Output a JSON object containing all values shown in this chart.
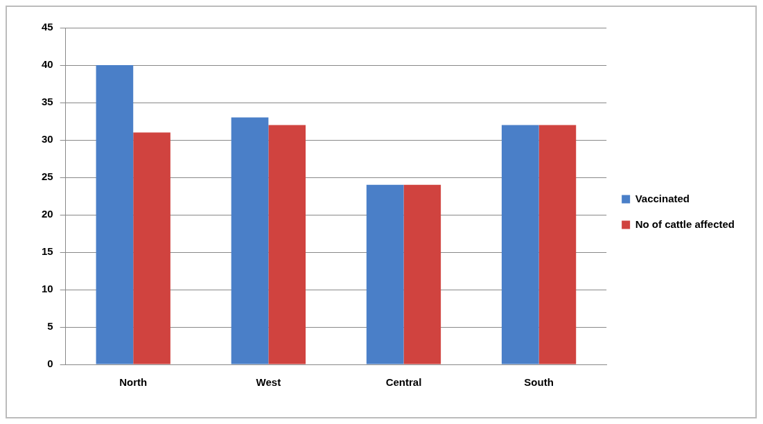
{
  "chart_data": {
    "type": "bar",
    "categories": [
      "North",
      "West",
      "Central",
      "South"
    ],
    "series": [
      {
        "name": "Vaccinated",
        "color": "#4a7fc8",
        "values": [
          40,
          33,
          24,
          32
        ]
      },
      {
        "name": "No of cattle affected",
        "color": "#d0433f",
        "values": [
          31,
          32,
          24,
          32
        ]
      }
    ],
    "ylim": [
      0,
      45
    ],
    "yticks": [
      0,
      5,
      10,
      15,
      20,
      25,
      30,
      35,
      40,
      45
    ],
    "grid": "y",
    "legend": "right"
  }
}
